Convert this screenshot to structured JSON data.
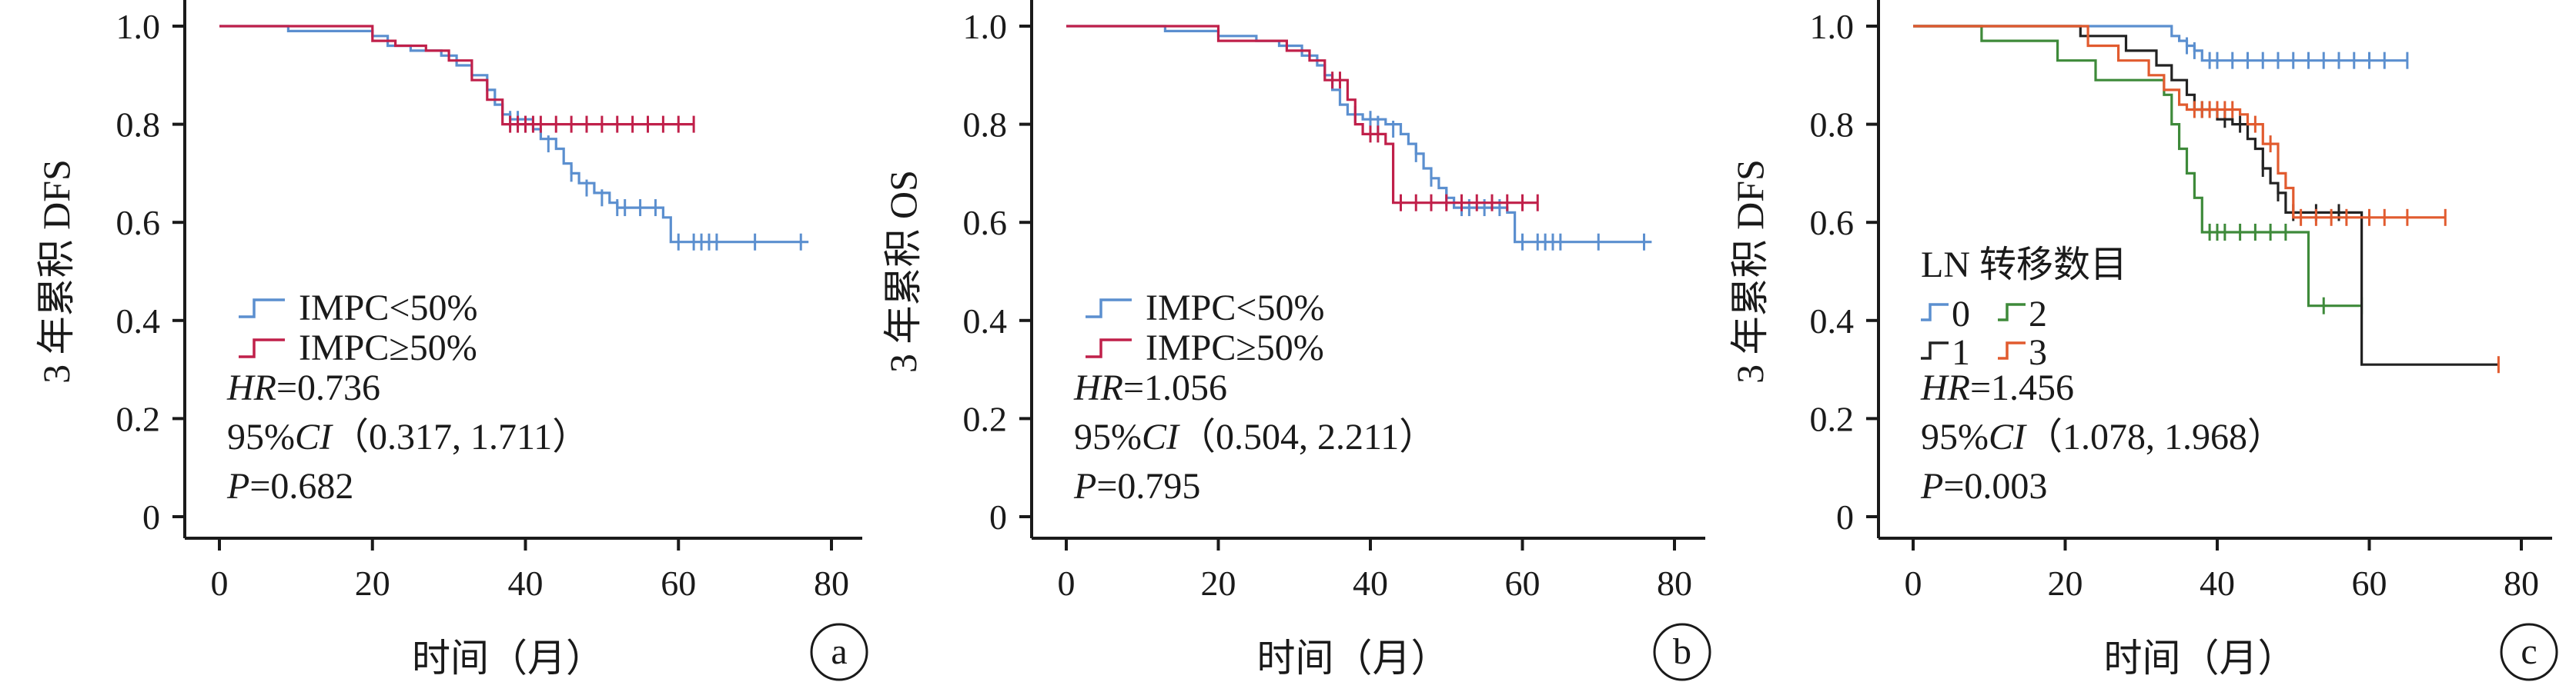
{
  "chart_data": [
    {
      "panel": "a",
      "type": "line",
      "xlabel": "时间（月）",
      "ylabel": "3 年累积 DFS",
      "xlim": [
        0,
        80
      ],
      "ylim": [
        0,
        1.0
      ],
      "xticks": [
        "0",
        "20",
        "40",
        "60",
        "80"
      ],
      "yticks": [
        "0",
        "0.2",
        "0.4",
        "0.6",
        "0.8",
        "1.0"
      ],
      "legend": {
        "placement": "lower-left",
        "title": ""
      },
      "stats": {
        "hr_label": "HR",
        "hr_value": "=0.736",
        "ci_prefix": "95%",
        "ci_label": "CI",
        "ci_value": "（0.317, 1.711）",
        "p_label": "P",
        "p_value": "=0.682"
      },
      "series": [
        {
          "name": "IMPC<50%",
          "color": "#5b8fcf",
          "steps": [
            [
              0,
              1.0
            ],
            [
              9,
              0.99
            ],
            [
              20,
              0.98
            ],
            [
              22,
              0.96
            ],
            [
              25,
              0.95
            ],
            [
              29,
              0.94
            ],
            [
              31,
              0.92
            ],
            [
              33,
              0.9
            ],
            [
              35,
              0.87
            ],
            [
              36,
              0.84
            ],
            [
              37,
              0.82
            ],
            [
              38,
              0.81
            ],
            [
              41,
              0.79
            ],
            [
              42,
              0.77
            ],
            [
              44,
              0.75
            ],
            [
              45,
              0.72
            ],
            [
              46,
              0.7
            ],
            [
              47,
              0.68
            ],
            [
              49,
              0.66
            ],
            [
              51,
              0.64
            ],
            [
              52,
              0.63
            ],
            [
              58,
              0.61
            ],
            [
              59,
              0.56
            ],
            [
              77,
              0.56
            ]
          ],
          "censored": [
            [
              38,
              0.81
            ],
            [
              39,
              0.81
            ],
            [
              40,
              0.8
            ],
            [
              43,
              0.76
            ],
            [
              46,
              0.7
            ],
            [
              48,
              0.67
            ],
            [
              50,
              0.65
            ],
            [
              52,
              0.63
            ],
            [
              53,
              0.63
            ],
            [
              55,
              0.63
            ],
            [
              57,
              0.63
            ],
            [
              60,
              0.56
            ],
            [
              62,
              0.56
            ],
            [
              63,
              0.56
            ],
            [
              64,
              0.56
            ],
            [
              65,
              0.56
            ],
            [
              70,
              0.56
            ],
            [
              76,
              0.56
            ]
          ]
        },
        {
          "name": "IMPC≥50%",
          "color": "#c0204a",
          "steps": [
            [
              0,
              1.0
            ],
            [
              19,
              1.0
            ],
            [
              20,
              0.97
            ],
            [
              23,
              0.96
            ],
            [
              27,
              0.95
            ],
            [
              30,
              0.93
            ],
            [
              33,
              0.89
            ],
            [
              35,
              0.85
            ],
            [
              37,
              0.8
            ],
            [
              62,
              0.8
            ]
          ],
          "censored": [
            [
              38,
              0.8
            ],
            [
              39,
              0.8
            ],
            [
              40,
              0.8
            ],
            [
              41,
              0.8
            ],
            [
              42,
              0.8
            ],
            [
              44,
              0.8
            ],
            [
              46,
              0.8
            ],
            [
              48,
              0.8
            ],
            [
              50,
              0.8
            ],
            [
              52,
              0.8
            ],
            [
              54,
              0.8
            ],
            [
              56,
              0.8
            ],
            [
              58,
              0.8
            ],
            [
              60,
              0.8
            ],
            [
              62,
              0.8
            ]
          ]
        }
      ]
    },
    {
      "panel": "b",
      "type": "line",
      "xlabel": "时间（月）",
      "ylabel": "3 年累积 OS",
      "xlim": [
        0,
        80
      ],
      "ylim": [
        0,
        1.0
      ],
      "xticks": [
        "0",
        "20",
        "40",
        "60",
        "80"
      ],
      "yticks": [
        "0",
        "0.2",
        "0.4",
        "0.6",
        "0.8",
        "1.0"
      ],
      "legend": {
        "placement": "lower-left",
        "title": ""
      },
      "stats": {
        "hr_label": "HR",
        "hr_value": "=1.056",
        "ci_prefix": "95%",
        "ci_label": "CI",
        "ci_value": "（0.504, 2.211）",
        "p_label": "P",
        "p_value": "=0.795"
      },
      "series": [
        {
          "name": "IMPC<50%",
          "color": "#5b8fcf",
          "steps": [
            [
              0,
              1.0
            ],
            [
              13,
              0.99
            ],
            [
              20,
              0.98
            ],
            [
              25,
              0.97
            ],
            [
              28,
              0.96
            ],
            [
              31,
              0.94
            ],
            [
              33,
              0.92
            ],
            [
              34,
              0.9
            ],
            [
              35,
              0.87
            ],
            [
              36,
              0.84
            ],
            [
              37,
              0.82
            ],
            [
              39,
              0.81
            ],
            [
              42,
              0.8
            ],
            [
              44,
              0.78
            ],
            [
              45,
              0.76
            ],
            [
              46,
              0.74
            ],
            [
              47,
              0.71
            ],
            [
              48,
              0.69
            ],
            [
              49,
              0.67
            ],
            [
              50,
              0.65
            ],
            [
              51,
              0.63
            ],
            [
              58,
              0.62
            ],
            [
              59,
              0.56
            ],
            [
              77,
              0.56
            ]
          ],
          "censored": [
            [
              38,
              0.82
            ],
            [
              40,
              0.81
            ],
            [
              41,
              0.8
            ],
            [
              43,
              0.79
            ],
            [
              46,
              0.74
            ],
            [
              48,
              0.69
            ],
            [
              50,
              0.65
            ],
            [
              52,
              0.63
            ],
            [
              53,
              0.63
            ],
            [
              55,
              0.63
            ],
            [
              57,
              0.63
            ],
            [
              60,
              0.56
            ],
            [
              62,
              0.56
            ],
            [
              63,
              0.56
            ],
            [
              64,
              0.56
            ],
            [
              65,
              0.56
            ],
            [
              70,
              0.56
            ],
            [
              76,
              0.56
            ]
          ]
        },
        {
          "name": "IMPC≥50%",
          "color": "#c0204a",
          "steps": [
            [
              0,
              1.0
            ],
            [
              20,
              0.97
            ],
            [
              29,
              0.95
            ],
            [
              32,
              0.93
            ],
            [
              34,
              0.89
            ],
            [
              37,
              0.85
            ],
            [
              38,
              0.8
            ],
            [
              39,
              0.78
            ],
            [
              42,
              0.76
            ],
            [
              43,
              0.64
            ],
            [
              62,
              0.64
            ]
          ],
          "censored": [
            [
              35,
              0.89
            ],
            [
              36,
              0.89
            ],
            [
              40,
              0.78
            ],
            [
              41,
              0.78
            ],
            [
              44,
              0.64
            ],
            [
              46,
              0.64
            ],
            [
              48,
              0.64
            ],
            [
              50,
              0.64
            ],
            [
              52,
              0.64
            ],
            [
              54,
              0.64
            ],
            [
              56,
              0.64
            ],
            [
              58,
              0.64
            ],
            [
              60,
              0.64
            ],
            [
              62,
              0.64
            ]
          ]
        }
      ]
    },
    {
      "panel": "c",
      "type": "line",
      "xlabel": "时间（月）",
      "ylabel": "3 年累积 DFS",
      "xlim": [
        0,
        80
      ],
      "ylim": [
        0,
        1.0
      ],
      "xticks": [
        "0",
        "20",
        "40",
        "60",
        "80"
      ],
      "yticks": [
        "0",
        "0.2",
        "0.4",
        "0.6",
        "0.8",
        "1.0"
      ],
      "legend": {
        "placement": "left",
        "title": "LN 转移数目"
      },
      "stats": {
        "hr_label": "HR",
        "hr_value": "=1.456",
        "ci_prefix": "95%",
        "ci_label": "CI",
        "ci_value": "（1.078, 1.968）",
        "p_label": "P",
        "p_value": "=0.003"
      },
      "series": [
        {
          "name": "0",
          "color": "#5b8fcf",
          "steps": [
            [
              0,
              1.0
            ],
            [
              33,
              1.0
            ],
            [
              34,
              0.98
            ],
            [
              35,
              0.97
            ],
            [
              36,
              0.96
            ],
            [
              37,
              0.95
            ],
            [
              38,
              0.93
            ],
            [
              65,
              0.93
            ]
          ],
          "censored": [
            [
              36,
              0.96
            ],
            [
              37,
              0.95
            ],
            [
              39,
              0.93
            ],
            [
              40,
              0.93
            ],
            [
              42,
              0.93
            ],
            [
              44,
              0.93
            ],
            [
              46,
              0.93
            ],
            [
              48,
              0.93
            ],
            [
              50,
              0.93
            ],
            [
              52,
              0.93
            ],
            [
              54,
              0.93
            ],
            [
              56,
              0.93
            ],
            [
              58,
              0.93
            ],
            [
              60,
              0.93
            ],
            [
              62,
              0.93
            ],
            [
              65,
              0.93
            ]
          ]
        },
        {
          "name": "2",
          "color": "#3e8a3a",
          "steps": [
            [
              0,
              1.0
            ],
            [
              9,
              0.97
            ],
            [
              19,
              0.93
            ],
            [
              24,
              0.89
            ],
            [
              33,
              0.86
            ],
            [
              34,
              0.8
            ],
            [
              35,
              0.75
            ],
            [
              36,
              0.7
            ],
            [
              37,
              0.65
            ],
            [
              38,
              0.58
            ],
            [
              42,
              0.58
            ],
            [
              50,
              0.58
            ],
            [
              52,
              0.43
            ],
            [
              59,
              0.43
            ]
          ],
          "censored": [
            [
              39,
              0.58
            ],
            [
              40,
              0.58
            ],
            [
              41,
              0.58
            ],
            [
              43,
              0.58
            ],
            [
              45,
              0.58
            ],
            [
              47,
              0.58
            ],
            [
              49,
              0.58
            ],
            [
              54,
              0.43
            ],
            [
              59,
              0.43
            ]
          ]
        },
        {
          "name": "1",
          "color": "#222222",
          "steps": [
            [
              0,
              1.0
            ],
            [
              20,
              1.0
            ],
            [
              22,
              0.98
            ],
            [
              28,
              0.95
            ],
            [
              32,
              0.92
            ],
            [
              34,
              0.89
            ],
            [
              36,
              0.86
            ],
            [
              37,
              0.83
            ],
            [
              40,
              0.81
            ],
            [
              42,
              0.8
            ],
            [
              44,
              0.77
            ],
            [
              45,
              0.75
            ],
            [
              46,
              0.71
            ],
            [
              47,
              0.68
            ],
            [
              48,
              0.66
            ],
            [
              49,
              0.62
            ],
            [
              59,
              0.62
            ],
            [
              59,
              0.31
            ],
            [
              77,
              0.31
            ]
          ],
          "censored": [
            [
              38,
              0.83
            ],
            [
              41,
              0.81
            ],
            [
              43,
              0.8
            ],
            [
              46,
              0.71
            ],
            [
              48,
              0.66
            ],
            [
              50,
              0.62
            ],
            [
              53,
              0.62
            ],
            [
              56,
              0.62
            ]
          ]
        },
        {
          "name": "3",
          "color": "#e15b2f",
          "steps": [
            [
              0,
              1.0
            ],
            [
              23,
              0.96
            ],
            [
              27,
              0.93
            ],
            [
              31,
              0.9
            ],
            [
              33,
              0.87
            ],
            [
              35,
              0.84
            ],
            [
              36,
              0.83
            ],
            [
              43,
              0.82
            ],
            [
              44,
              0.8
            ],
            [
              46,
              0.76
            ],
            [
              48,
              0.7
            ],
            [
              49,
              0.67
            ],
            [
              50,
              0.61
            ],
            [
              70,
              0.61
            ]
          ],
          "censored": [
            [
              37,
              0.83
            ],
            [
              38,
              0.83
            ],
            [
              39,
              0.83
            ],
            [
              40,
              0.83
            ],
            [
              41,
              0.83
            ],
            [
              42,
              0.83
            ],
            [
              45,
              0.8
            ],
            [
              47,
              0.76
            ],
            [
              51,
              0.61
            ],
            [
              53,
              0.61
            ],
            [
              55,
              0.61
            ],
            [
              57,
              0.61
            ],
            [
              60,
              0.61
            ],
            [
              62,
              0.61
            ],
            [
              65,
              0.61
            ],
            [
              70,
              0.61
            ],
            [
              77,
              0.31
            ]
          ]
        }
      ]
    }
  ]
}
